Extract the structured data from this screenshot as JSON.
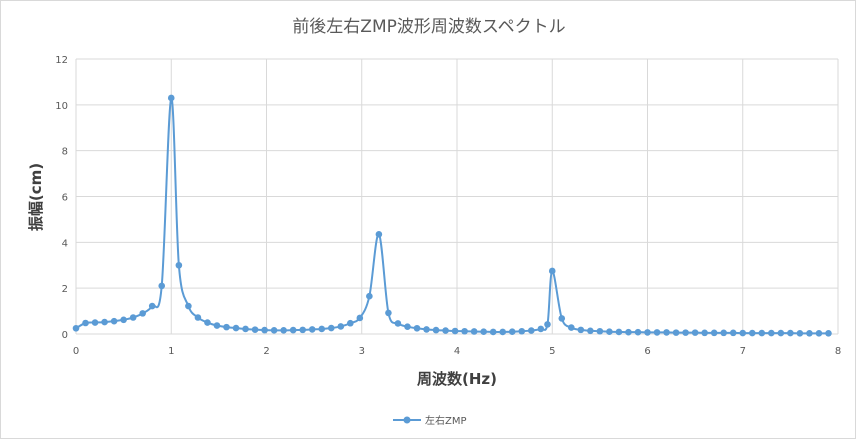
{
  "chart_data": {
    "type": "line",
    "title": "前後左右ZMP波形周波数スペクトル",
    "xlabel": "周波数(Hz)",
    "ylabel": "振幅(cm)",
    "xlim": [
      0,
      8
    ],
    "ylim": [
      0,
      12
    ],
    "x_ticks": [
      "0",
      "1",
      "2",
      "3",
      "4",
      "5",
      "6",
      "7",
      "8"
    ],
    "y_ticks": [
      "0",
      "2",
      "4",
      "6",
      "8",
      "10",
      "12"
    ],
    "grid": true,
    "legend_position": "bottom",
    "series": [
      {
        "name": "左右ZMP",
        "color": "#5b9bd5",
        "points": [
          [
            0.0,
            0.25
          ],
          [
            0.1,
            0.48
          ],
          [
            0.2,
            0.5
          ],
          [
            0.3,
            0.52
          ],
          [
            0.4,
            0.56
          ],
          [
            0.5,
            0.62
          ],
          [
            0.6,
            0.72
          ],
          [
            0.7,
            0.9
          ],
          [
            0.8,
            1.22
          ],
          [
            0.9,
            2.1
          ],
          [
            1.0,
            10.3
          ],
          [
            1.08,
            3.0
          ],
          [
            1.18,
            1.22
          ],
          [
            1.28,
            0.72
          ],
          [
            1.38,
            0.5
          ],
          [
            1.48,
            0.37
          ],
          [
            1.58,
            0.3
          ],
          [
            1.68,
            0.26
          ],
          [
            1.78,
            0.22
          ],
          [
            1.88,
            0.19
          ],
          [
            1.98,
            0.17
          ],
          [
            2.08,
            0.16
          ],
          [
            2.18,
            0.16
          ],
          [
            2.28,
            0.17
          ],
          [
            2.38,
            0.18
          ],
          [
            2.48,
            0.2
          ],
          [
            2.58,
            0.22
          ],
          [
            2.68,
            0.26
          ],
          [
            2.78,
            0.33
          ],
          [
            2.88,
            0.47
          ],
          [
            2.98,
            0.7
          ],
          [
            3.08,
            1.65
          ],
          [
            3.18,
            4.35
          ],
          [
            3.28,
            0.92
          ],
          [
            3.38,
            0.46
          ],
          [
            3.48,
            0.32
          ],
          [
            3.58,
            0.25
          ],
          [
            3.68,
            0.2
          ],
          [
            3.78,
            0.17
          ],
          [
            3.88,
            0.15
          ],
          [
            3.98,
            0.13
          ],
          [
            4.08,
            0.12
          ],
          [
            4.18,
            0.11
          ],
          [
            4.28,
            0.1
          ],
          [
            4.38,
            0.09
          ],
          [
            4.48,
            0.09
          ],
          [
            4.58,
            0.1
          ],
          [
            4.68,
            0.12
          ],
          [
            4.78,
            0.15
          ],
          [
            4.88,
            0.22
          ],
          [
            4.95,
            0.42
          ],
          [
            5.0,
            2.75
          ],
          [
            5.1,
            0.68
          ],
          [
            5.2,
            0.28
          ],
          [
            5.3,
            0.18
          ],
          [
            5.4,
            0.14
          ],
          [
            5.5,
            0.12
          ],
          [
            5.6,
            0.1
          ],
          [
            5.7,
            0.09
          ],
          [
            5.8,
            0.08
          ],
          [
            5.9,
            0.08
          ],
          [
            6.0,
            0.07
          ],
          [
            6.1,
            0.07
          ],
          [
            6.2,
            0.07
          ],
          [
            6.3,
            0.06
          ],
          [
            6.4,
            0.06
          ],
          [
            6.5,
            0.06
          ],
          [
            6.6,
            0.05
          ],
          [
            6.7,
            0.05
          ],
          [
            6.8,
            0.05
          ],
          [
            6.9,
            0.05
          ],
          [
            7.0,
            0.04
          ],
          [
            7.1,
            0.04
          ],
          [
            7.2,
            0.04
          ],
          [
            7.3,
            0.04
          ],
          [
            7.4,
            0.04
          ],
          [
            7.5,
            0.04
          ],
          [
            7.6,
            0.03
          ],
          [
            7.7,
            0.03
          ],
          [
            7.8,
            0.03
          ],
          [
            7.9,
            0.03
          ]
        ]
      }
    ]
  }
}
